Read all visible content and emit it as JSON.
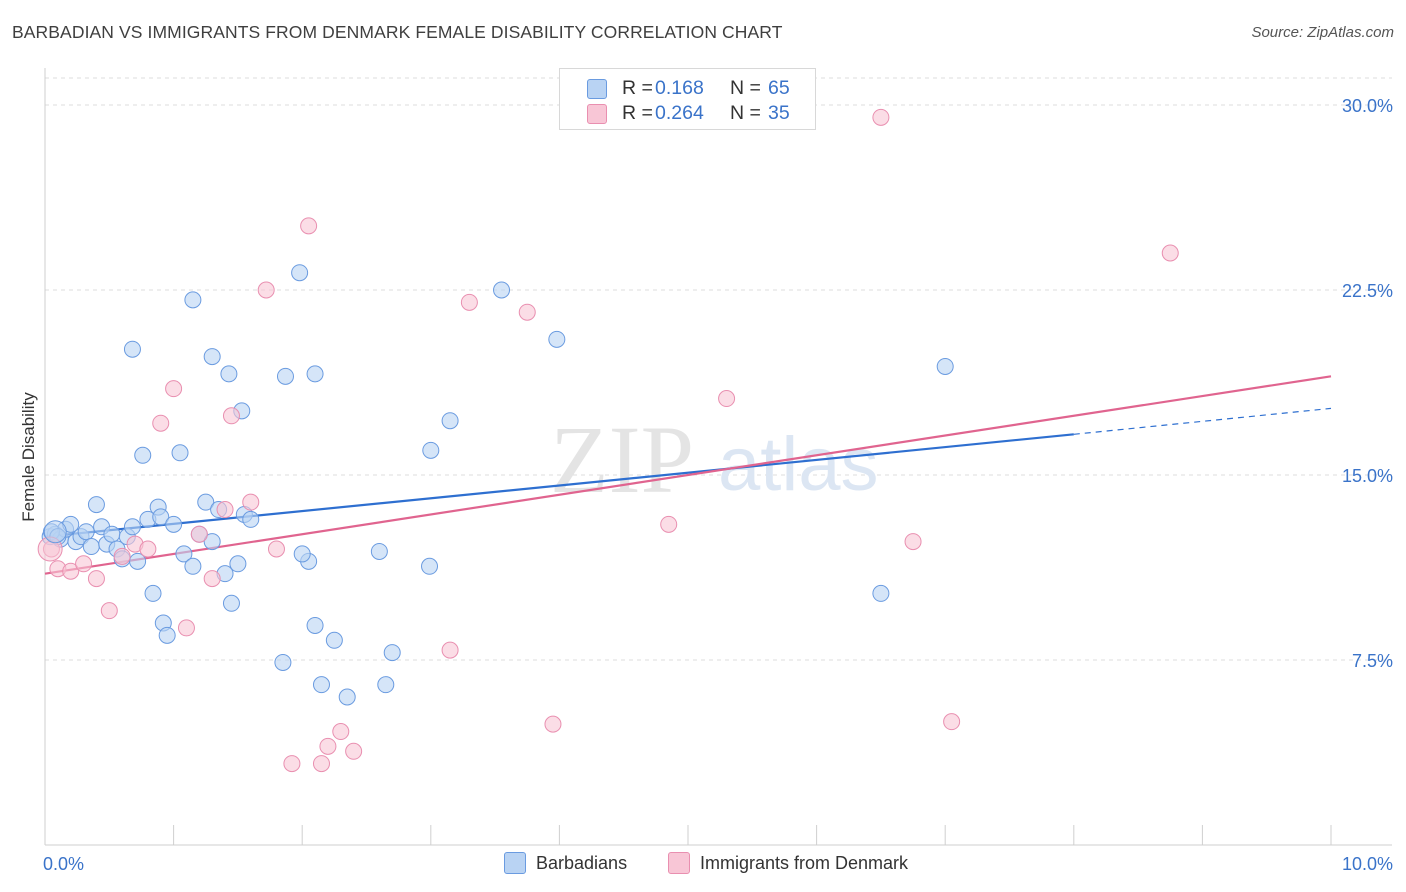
{
  "header": {
    "title": "BARBADIAN VS IMMIGRANTS FROM DENMARK FEMALE DISABILITY CORRELATION CHART",
    "source": "Source: ZipAtlas.com"
  },
  "legend_top": {
    "rows": [
      {
        "r_label": "R =",
        "r_value": "0.168",
        "n_label": "N =",
        "n_value": "65"
      },
      {
        "r_label": "R =",
        "r_value": "0.264",
        "n_label": "N =",
        "n_value": "35"
      }
    ]
  },
  "watermark": {
    "part1": "ZIP",
    "part2": "atlas"
  },
  "colors": {
    "blue_fill": "#b9d3f3",
    "blue_stroke": "#6a9be0",
    "blue_line": "#2e6fd0",
    "pink_fill": "#f8c6d6",
    "pink_stroke": "#e98fb0",
    "pink_line": "#e0648f",
    "tick_label": "#3a73c9",
    "grid": "#dcdcdc"
  },
  "chart_data": {
    "type": "scatter",
    "title": "BARBADIAN VS IMMIGRANTS FROM DENMARK FEMALE DISABILITY CORRELATION CHART",
    "xlabel": "",
    "ylabel": "Female Disability",
    "xlim": [
      0,
      10
    ],
    "ylim": [
      0,
      31.5
    ],
    "x_tick_labels": [
      "0.0%",
      "10.0%"
    ],
    "y_ticks": [
      7.5,
      15.0,
      22.5,
      30.0
    ],
    "y_tick_labels": [
      "7.5%",
      "15.0%",
      "22.5%",
      "30.0%"
    ],
    "grid": "horizontal dashed",
    "legend_position": "top-center",
    "series": [
      {
        "name": "Barbadians",
        "color": "#6a9be0",
        "points": [
          [
            0.04,
            12.5
          ],
          [
            0.08,
            12.6
          ],
          [
            0.12,
            12.4
          ],
          [
            0.16,
            12.8
          ],
          [
            0.2,
            13.0
          ],
          [
            0.24,
            12.3
          ],
          [
            0.28,
            12.5
          ],
          [
            0.32,
            12.7
          ],
          [
            0.36,
            12.1
          ],
          [
            0.4,
            13.8
          ],
          [
            0.44,
            12.9
          ],
          [
            0.48,
            12.2
          ],
          [
            0.52,
            12.6
          ],
          [
            0.56,
            12.0
          ],
          [
            0.6,
            11.6
          ],
          [
            0.64,
            12.5
          ],
          [
            0.68,
            12.9
          ],
          [
            0.72,
            11.5
          ],
          [
            0.76,
            15.8
          ],
          [
            0.8,
            13.2
          ],
          [
            0.84,
            10.2
          ],
          [
            0.88,
            13.7
          ],
          [
            0.9,
            13.3
          ],
          [
            0.92,
            9.0
          ],
          [
            0.95,
            8.5
          ],
          [
            1.0,
            13.0
          ],
          [
            1.05,
            15.9
          ],
          [
            1.08,
            11.8
          ],
          [
            1.15,
            11.3
          ],
          [
            1.2,
            12.6
          ],
          [
            1.25,
            13.9
          ],
          [
            1.3,
            12.3
          ],
          [
            1.35,
            13.6
          ],
          [
            1.4,
            11.0
          ],
          [
            1.45,
            9.8
          ],
          [
            1.5,
            11.4
          ],
          [
            1.55,
            13.4
          ],
          [
            1.6,
            13.2
          ],
          [
            0.68,
            20.1
          ],
          [
            1.15,
            22.1
          ],
          [
            1.3,
            19.8
          ],
          [
            1.43,
            19.1
          ],
          [
            1.53,
            17.6
          ],
          [
            1.87,
            19.0
          ],
          [
            1.98,
            23.2
          ],
          [
            2.05,
            11.5
          ],
          [
            2.1,
            19.1
          ],
          [
            1.85,
            7.4
          ],
          [
            2.15,
            6.5
          ],
          [
            2.25,
            8.3
          ],
          [
            2.35,
            6.0
          ],
          [
            2.6,
            11.9
          ],
          [
            2.7,
            7.8
          ],
          [
            2.65,
            6.5
          ],
          [
            2.99,
            11.3
          ],
          [
            3.0,
            16.0
          ],
          [
            3.15,
            17.2
          ],
          [
            3.55,
            22.5
          ],
          [
            3.98,
            20.5
          ],
          [
            6.5,
            10.2
          ],
          [
            7.0,
            19.4
          ],
          [
            2.0,
            11.8
          ],
          [
            2.1,
            8.9
          ],
          [
            0.05,
            12.7
          ],
          [
            0.1,
            12.5
          ]
        ],
        "trend": {
          "x": [
            0,
            8.0
          ],
          "y": [
            12.5,
            16.65
          ],
          "dashed_extension": {
            "x": [
              8.0,
              10.0
            ],
            "y": [
              16.65,
              17.7
            ]
          }
        }
      },
      {
        "name": "Immigrants from Denmark",
        "color": "#e98fb0",
        "points": [
          [
            0.05,
            12.0
          ],
          [
            0.1,
            11.2
          ],
          [
            0.2,
            11.1
          ],
          [
            0.3,
            11.4
          ],
          [
            0.4,
            10.8
          ],
          [
            0.5,
            9.5
          ],
          [
            0.6,
            11.7
          ],
          [
            0.7,
            12.2
          ],
          [
            0.8,
            12.0
          ],
          [
            0.9,
            17.1
          ],
          [
            1.0,
            18.5
          ],
          [
            1.1,
            8.8
          ],
          [
            1.2,
            12.6
          ],
          [
            1.3,
            10.8
          ],
          [
            1.4,
            13.6
          ],
          [
            1.45,
            17.4
          ],
          [
            1.6,
            13.9
          ],
          [
            1.72,
            22.5
          ],
          [
            1.8,
            12.0
          ],
          [
            1.92,
            3.3
          ],
          [
            2.05,
            25.1
          ],
          [
            2.15,
            3.3
          ],
          [
            2.2,
            4.0
          ],
          [
            2.3,
            4.6
          ],
          [
            2.4,
            3.8
          ],
          [
            3.15,
            7.9
          ],
          [
            3.3,
            22.0
          ],
          [
            3.75,
            21.6
          ],
          [
            3.95,
            4.9
          ],
          [
            4.85,
            13.0
          ],
          [
            5.3,
            18.1
          ],
          [
            6.5,
            29.5
          ],
          [
            6.75,
            12.3
          ],
          [
            7.05,
            5.0
          ],
          [
            8.75,
            24.0
          ]
        ],
        "trend": {
          "x": [
            0,
            10.0
          ],
          "y": [
            11.0,
            19.0
          ]
        }
      }
    ]
  },
  "legend_bottom": {
    "items": [
      {
        "label": "Barbadians"
      },
      {
        "label": "Immigrants from Denmark"
      }
    ]
  }
}
